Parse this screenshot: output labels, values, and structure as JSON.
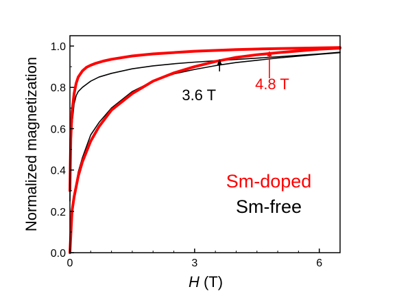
{
  "chart_data": {
    "type": "line",
    "title": "",
    "xlabel": {
      "italic": "H",
      "rest": " (T)"
    },
    "ylabel": "Normalized magnetization",
    "xlim": [
      0,
      6.5
    ],
    "ylim": [
      0,
      1.05
    ],
    "xticks": [
      0,
      3,
      6
    ],
    "xtick_labels": [
      "0",
      "3",
      "6"
    ],
    "yticks": [
      0.0,
      0.2,
      0.4,
      0.6,
      0.8,
      1.0
    ],
    "ytick_labels": [
      "0.0",
      "0.2",
      "0.4",
      "0.6",
      "0.8",
      "1.0"
    ],
    "series": [
      {
        "name": "Sm-doped",
        "color": "#ff0000",
        "branches": [
          {
            "x": [
              0,
              0.02,
              0.05,
              0.1,
              0.15,
              0.2,
              0.3,
              0.4,
              0.5,
              0.6,
              0.8,
              1.0,
              1.5,
              2.0,
              3.0,
              4.0,
              5.0,
              6.0,
              6.5
            ],
            "y": [
              0.3,
              0.55,
              0.68,
              0.77,
              0.82,
              0.85,
              0.88,
              0.897,
              0.907,
              0.915,
              0.927,
              0.936,
              0.952,
              0.962,
              0.975,
              0.983,
              0.988,
              0.991,
              0.993
            ]
          },
          {
            "x": [
              0,
              0.05,
              0.1,
              0.2,
              0.3,
              0.5,
              0.7,
              1.0,
              1.5,
              2.0,
              2.5,
              3.0,
              3.5,
              4.0,
              4.5,
              5.0,
              6.0,
              6.5
            ],
            "y": [
              0,
              0.2,
              0.27,
              0.37,
              0.44,
              0.54,
              0.61,
              0.69,
              0.77,
              0.83,
              0.87,
              0.9,
              0.925,
              0.945,
              0.958,
              0.968,
              0.985,
              0.99
            ]
          }
        ]
      },
      {
        "name": "Sm-free",
        "color": "#000000",
        "branches": [
          {
            "x": [
              0,
              0.02,
              0.05,
              0.1,
              0.15,
              0.2,
              0.3,
              0.5,
              0.7,
              1.0,
              1.5,
              2.0,
              2.5,
              3.0,
              4.0,
              5.0,
              6.0,
              6.5
            ],
            "y": [
              0.25,
              0.48,
              0.62,
              0.72,
              0.76,
              0.78,
              0.8,
              0.83,
              0.85,
              0.868,
              0.89,
              0.904,
              0.914,
              0.922,
              0.935,
              0.948,
              0.962,
              0.97
            ]
          },
          {
            "x": [
              0,
              0.05,
              0.1,
              0.2,
              0.3,
              0.5,
              0.7,
              1.0,
              1.5,
              2.0,
              2.5,
              3.0,
              3.5,
              4.0,
              5.0,
              6.0,
              6.5
            ],
            "y": [
              0,
              0.2,
              0.28,
              0.39,
              0.46,
              0.57,
              0.63,
              0.7,
              0.78,
              0.83,
              0.865,
              0.887,
              0.905,
              0.92,
              0.942,
              0.96,
              0.968
            ]
          }
        ]
      }
    ],
    "annotations": [
      {
        "text": "3.6 T",
        "x": 3.6,
        "color": "#000000"
      },
      {
        "text": "4.8 T",
        "x": 4.8,
        "color": "#ff0000"
      }
    ],
    "legend": [
      {
        "text": "Sm-doped",
        "color": "#ff0000"
      },
      {
        "text": "Sm-free",
        "color": "#000000"
      }
    ],
    "legend_placement": "lower-right",
    "grid": false
  }
}
